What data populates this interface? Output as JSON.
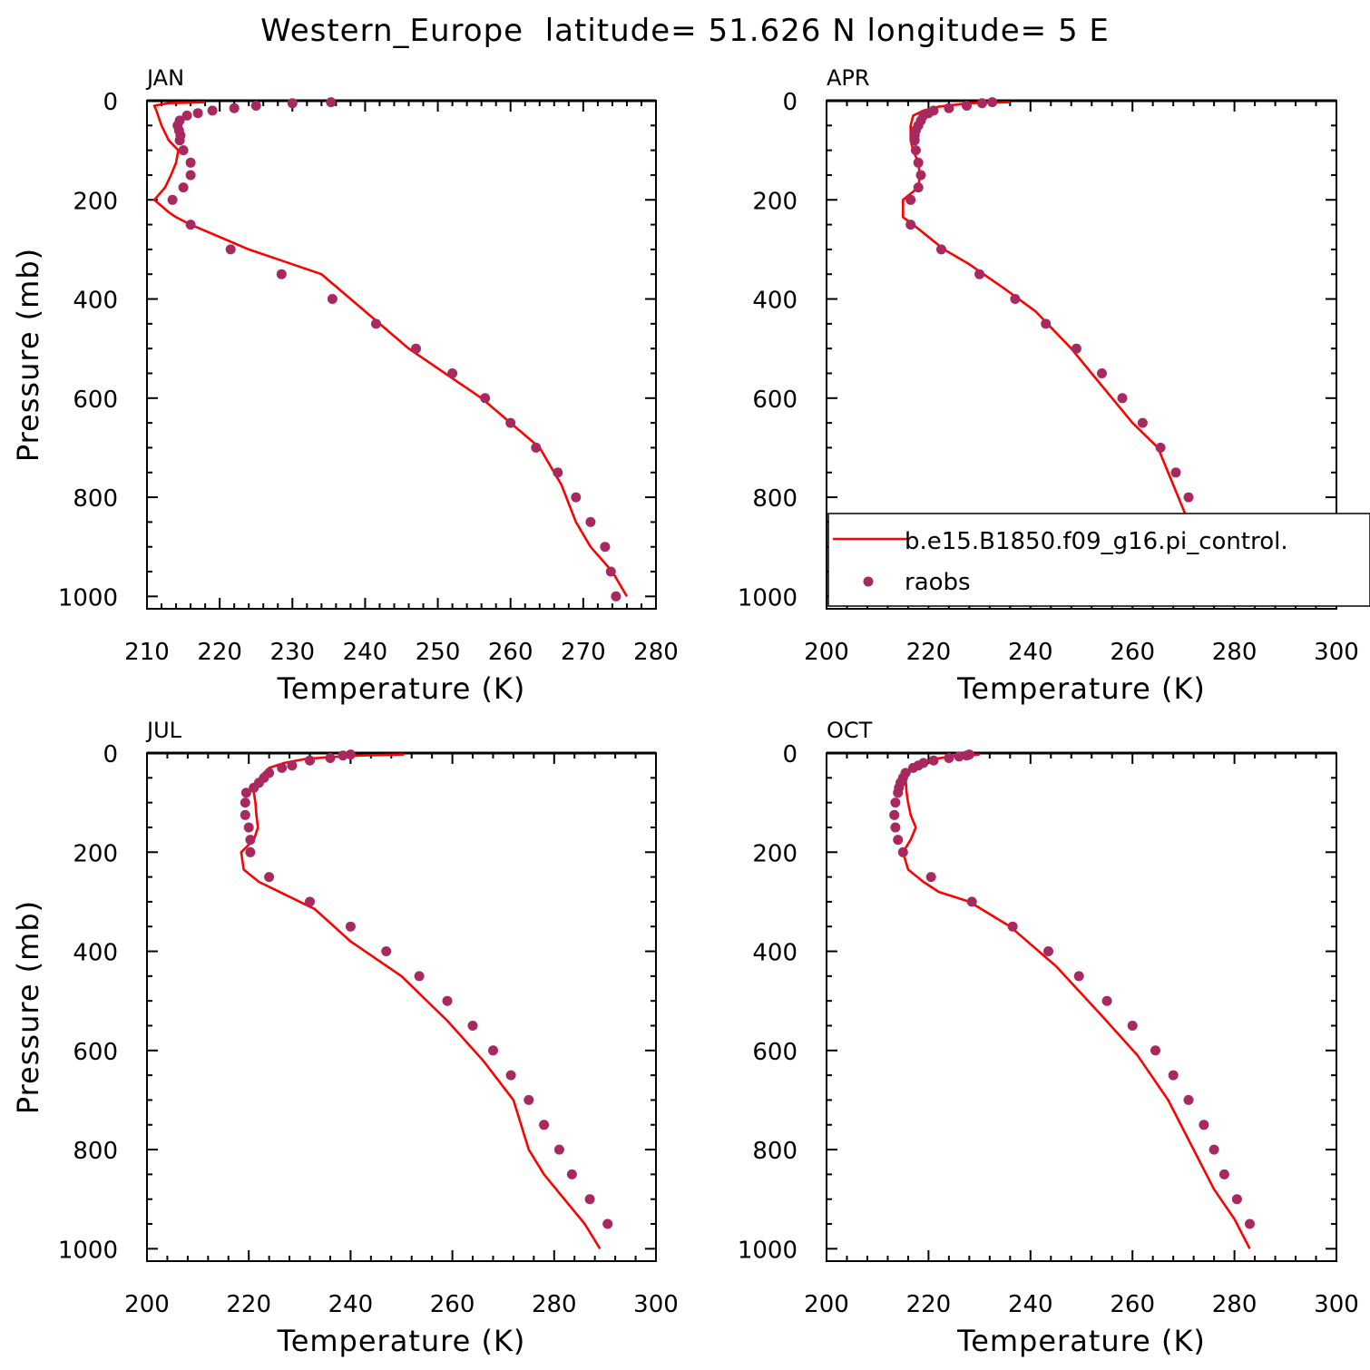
{
  "title": "Western_Europe  latitude= 51.626 N longitude= 5 E",
  "colors": {
    "model_line": "#ff0000",
    "obs_points": "#a8295f",
    "axis": "#000000"
  },
  "legend": {
    "placement": "inside APR panel, lower-left",
    "model_label": "b.e15.B1850.f09_g16.pi_control.",
    "obs_label": "raobs"
  },
  "chart_data": [
    {
      "type": "line",
      "panel": "JAN",
      "xlabel": "Temperature (K)",
      "ylabel": "Pressure (mb)",
      "xlim": [
        210,
        280
      ],
      "ylim": [
        1025,
        0
      ],
      "xticks": [
        210,
        220,
        230,
        240,
        250,
        260,
        270,
        280
      ],
      "yticks": [
        0,
        200,
        400,
        600,
        800,
        1000
      ],
      "series": [
        {
          "name": "b.e15.B1850.f09_g16.pi_control.",
          "style": "line",
          "points": [
            [
              218,
              3
            ],
            [
              213,
              5
            ],
            [
              211,
              10
            ],
            [
              211.3,
              20
            ],
            [
              212,
              50
            ],
            [
              213,
              80
            ],
            [
              214.3,
              100
            ],
            [
              214,
              125
            ],
            [
              213.3,
              150
            ],
            [
              212.5,
              175
            ],
            [
              211,
              200
            ],
            [
              213,
              225
            ],
            [
              214,
              235
            ],
            [
              216,
              250
            ],
            [
              220,
              275
            ],
            [
              224,
              300
            ],
            [
              228,
              320
            ],
            [
              234,
              350
            ],
            [
              238,
              400
            ],
            [
              242,
              450
            ],
            [
              246,
              500
            ],
            [
              251,
              550
            ],
            [
              256,
              600
            ],
            [
              260,
              650
            ],
            [
              264,
              700
            ],
            [
              267,
              775
            ],
            [
              269,
              850
            ],
            [
              271,
              900
            ],
            [
              274,
              950
            ],
            [
              276,
              1000
            ]
          ]
        },
        {
          "name": "raobs",
          "style": "points",
          "points": [
            [
              235.3,
              3
            ],
            [
              230,
              5
            ],
            [
              225,
              10
            ],
            [
              222,
              15
            ],
            [
              219,
              20
            ],
            [
              217,
              25
            ],
            [
              215.5,
              30
            ],
            [
              214.5,
              40
            ],
            [
              214.2,
              50
            ],
            [
              214.4,
              60
            ],
            [
              214.6,
              70
            ],
            [
              214.5,
              80
            ],
            [
              215,
              100
            ],
            [
              216,
              125
            ],
            [
              216,
              150
            ],
            [
              215,
              175
            ],
            [
              213.5,
              200
            ],
            [
              216,
              250
            ],
            [
              221.5,
              300
            ],
            [
              228.5,
              350
            ],
            [
              235.5,
              400
            ],
            [
              241.5,
              450
            ],
            [
              247,
              500
            ],
            [
              252,
              550
            ],
            [
              256.5,
              600
            ],
            [
              260,
              650
            ],
            [
              263.5,
              700
            ],
            [
              266.5,
              750
            ],
            [
              269,
              800
            ],
            [
              271,
              850
            ],
            [
              273,
              900
            ],
            [
              273.8,
              950
            ],
            [
              274.5,
              1000
            ]
          ]
        }
      ]
    },
    {
      "type": "line",
      "panel": "APR",
      "xlabel": "Temperature (K)",
      "ylabel": "",
      "xlim": [
        200,
        300
      ],
      "ylim": [
        1025,
        0
      ],
      "xticks": [
        200,
        220,
        240,
        260,
        280,
        300
      ],
      "yticks": [
        0,
        200,
        400,
        600,
        800,
        1000
      ],
      "series": [
        {
          "name": "b.e15.B1850.f09_g16.pi_control.",
          "style": "line",
          "points": [
            [
              236,
              3
            ],
            [
              228,
              5
            ],
            [
              222,
              12
            ],
            [
              219,
              20
            ],
            [
              217,
              30
            ],
            [
              216.5,
              50
            ],
            [
              216.5,
              80
            ],
            [
              217,
              100
            ],
            [
              218,
              125
            ],
            [
              218.3,
              150
            ],
            [
              218,
              175
            ],
            [
              215,
              200
            ],
            [
              215,
              235
            ],
            [
              217,
              250
            ],
            [
              220,
              275
            ],
            [
              223,
              300
            ],
            [
              228,
              330
            ],
            [
              235,
              380
            ],
            [
              241,
              425
            ],
            [
              248,
              500
            ],
            [
              252,
              550
            ],
            [
              256,
              600
            ],
            [
              260,
              650
            ],
            [
              265,
              700
            ],
            [
              267,
              750
            ],
            [
              269,
              800
            ],
            [
              271,
              850
            ],
            [
              274,
              900
            ],
            [
              278,
              950
            ],
            [
              281,
              1000
            ]
          ]
        },
        {
          "name": "raobs",
          "style": "points",
          "points": [
            [
              232.5,
              3
            ],
            [
              230.5,
              5
            ],
            [
              227.5,
              10
            ],
            [
              224,
              15
            ],
            [
              221,
              20
            ],
            [
              220,
              25
            ],
            [
              219,
              30
            ],
            [
              218.5,
              40
            ],
            [
              218,
              50
            ],
            [
              217.5,
              60
            ],
            [
              217.3,
              70
            ],
            [
              217.3,
              80
            ],
            [
              217.5,
              100
            ],
            [
              218,
              125
            ],
            [
              218.5,
              150
            ],
            [
              218,
              175
            ],
            [
              216.5,
              200
            ],
            [
              216.5,
              250
            ],
            [
              222.5,
              300
            ],
            [
              230,
              350
            ],
            [
              237,
              400
            ],
            [
              243,
              450
            ],
            [
              249,
              500
            ],
            [
              254,
              550
            ],
            [
              258,
              600
            ],
            [
              262,
              650
            ],
            [
              265.5,
              700
            ],
            [
              268.5,
              750
            ],
            [
              271,
              800
            ],
            [
              273.5,
              850
            ],
            [
              277,
              900
            ],
            [
              280.5,
              950
            ]
          ]
        }
      ]
    },
    {
      "type": "line",
      "panel": "JUL",
      "xlabel": "Temperature (K)",
      "ylabel": "Pressure (mb)",
      "xlim": [
        200,
        300
      ],
      "ylim": [
        1025,
        0
      ],
      "xticks": [
        200,
        220,
        240,
        260,
        280,
        300
      ],
      "yticks": [
        0,
        200,
        400,
        600,
        800,
        1000
      ],
      "series": [
        {
          "name": "b.e15.B1850.f09_g16.pi_control.",
          "style": "line",
          "points": [
            [
              250.5,
              3
            ],
            [
              242,
              5
            ],
            [
              236,
              8
            ],
            [
              231,
              12
            ],
            [
              227,
              20
            ],
            [
              224,
              30
            ],
            [
              222.5,
              45
            ],
            [
              221.5,
              60
            ],
            [
              221,
              80
            ],
            [
              221.3,
              100
            ],
            [
              221.5,
              125
            ],
            [
              221.8,
              150
            ],
            [
              221,
              175
            ],
            [
              218.5,
              200
            ],
            [
              219,
              235
            ],
            [
              222,
              260
            ],
            [
              225,
              275
            ],
            [
              233,
              315
            ],
            [
              240,
              380
            ],
            [
              250,
              450
            ],
            [
              259,
              540
            ],
            [
              266,
              620
            ],
            [
              272,
              700
            ],
            [
              275,
              800
            ],
            [
              278,
              850
            ],
            [
              282,
              900
            ],
            [
              286,
              950
            ],
            [
              289,
              1000
            ]
          ]
        },
        {
          "name": "raobs",
          "style": "points",
          "points": [
            [
              240,
              3
            ],
            [
              238.5,
              5
            ],
            [
              236,
              10
            ],
            [
              232,
              15
            ],
            [
              228.5,
              25
            ],
            [
              226.5,
              30
            ],
            [
              224,
              40
            ],
            [
              223,
              50
            ],
            [
              222,
              60
            ],
            [
              221,
              70
            ],
            [
              219.5,
              80
            ],
            [
              219.3,
              100
            ],
            [
              219.3,
              125
            ],
            [
              220,
              150
            ],
            [
              220.3,
              175
            ],
            [
              220.3,
              200
            ],
            [
              224,
              250
            ],
            [
              232,
              300
            ],
            [
              240,
              350
            ],
            [
              247,
              400
            ],
            [
              253.5,
              450
            ],
            [
              259,
              500
            ],
            [
              264,
              550
            ],
            [
              268,
              600
            ],
            [
              271.5,
              650
            ],
            [
              275,
              700
            ],
            [
              278,
              750
            ],
            [
              281,
              800
            ],
            [
              283.5,
              850
            ],
            [
              287,
              900
            ],
            [
              290.5,
              950
            ]
          ]
        }
      ]
    },
    {
      "type": "line",
      "panel": "OCT",
      "xlabel": "Temperature (K)",
      "ylabel": "",
      "xlim": [
        200,
        300
      ],
      "ylim": [
        1025,
        0
      ],
      "xticks": [
        200,
        220,
        240,
        260,
        280,
        300
      ],
      "yticks": [
        0,
        200,
        400,
        600,
        800,
        1000
      ],
      "series": [
        {
          "name": "b.e15.B1850.f09_g16.pi_control.",
          "style": "line",
          "points": [
            [
              230,
              3
            ],
            [
              225,
              6
            ],
            [
              221,
              12
            ],
            [
              219,
              20
            ],
            [
              217,
              30
            ],
            [
              215.5,
              50
            ],
            [
              215.7,
              80
            ],
            [
              216,
              100
            ],
            [
              216.5,
              125
            ],
            [
              217.5,
              150
            ],
            [
              216.5,
              175
            ],
            [
              215,
              200
            ],
            [
              216,
              235
            ],
            [
              219,
              260
            ],
            [
              222,
              280
            ],
            [
              228,
              300
            ],
            [
              236,
              350
            ],
            [
              245,
              430
            ],
            [
              254,
              530
            ],
            [
              261,
              610
            ],
            [
              267,
              700
            ],
            [
              272,
              800
            ],
            [
              276,
              880
            ],
            [
              280,
              940
            ],
            [
              283,
              1000
            ]
          ]
        },
        {
          "name": "raobs",
          "style": "points",
          "points": [
            [
              228,
              3
            ],
            [
              227.5,
              5
            ],
            [
              226,
              7
            ],
            [
              224,
              10
            ],
            [
              221,
              15
            ],
            [
              219,
              20
            ],
            [
              218,
              25
            ],
            [
              217,
              30
            ],
            [
              215.5,
              40
            ],
            [
              215,
              50
            ],
            [
              214.5,
              60
            ],
            [
              214.2,
              70
            ],
            [
              214,
              80
            ],
            [
              213.5,
              100
            ],
            [
              213.3,
              125
            ],
            [
              213.5,
              150
            ],
            [
              214,
              175
            ],
            [
              215,
              200
            ],
            [
              220.5,
              250
            ],
            [
              228.5,
              300
            ],
            [
              236.5,
              350
            ],
            [
              243.5,
              400
            ],
            [
              249.5,
              450
            ],
            [
              255,
              500
            ],
            [
              260,
              550
            ],
            [
              264.5,
              600
            ],
            [
              268,
              650
            ],
            [
              271,
              700
            ],
            [
              274,
              750
            ],
            [
              276,
              800
            ],
            [
              278,
              850
            ],
            [
              280.5,
              900
            ],
            [
              283,
              950
            ]
          ]
        }
      ]
    }
  ]
}
